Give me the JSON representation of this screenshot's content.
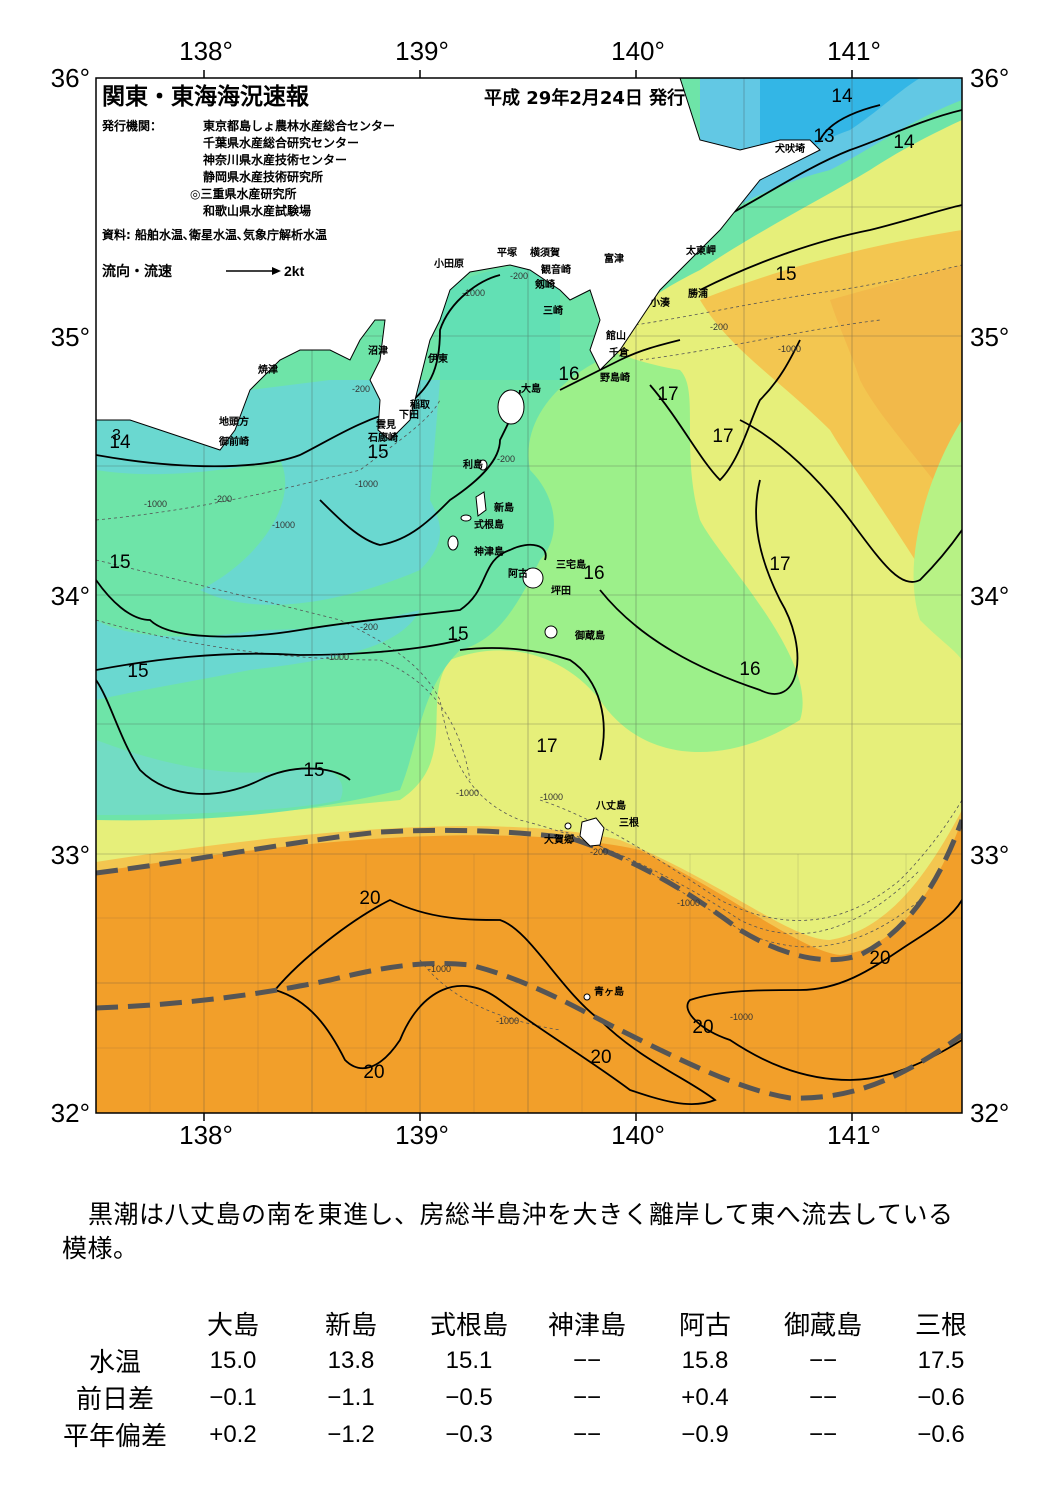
{
  "map": {
    "title": "関東・東海海況速報",
    "issue_date": "平成 29年2月24日 発行",
    "issuer_label": "発行機関：",
    "issuers": [
      "東京都島しょ農林水産総合センター",
      "千葉県水産総合研究センター",
      "神奈川県水産技術センター",
      "静岡県水産技術研究所",
      "◎三重県水産研究所",
      "和歌山県水産試験場"
    ],
    "sources": "資料: 船舶水温､衛星水温､気象庁解析水温",
    "flow_label": "流向・流速",
    "flow_scale": "2kt",
    "lon_labels": [
      "138°",
      "139°",
      "140°",
      "141°"
    ],
    "lat_labels": [
      "36°",
      "35°",
      "34°",
      "33°",
      "32°"
    ],
    "place_names": [
      "犬吠埼",
      "太東岬",
      "勝浦",
      "小湊",
      "富津",
      "館山",
      "千倉",
      "野島崎",
      "横須賀",
      "観音崎",
      "剱崎",
      "三崎",
      "平塚",
      "小田原",
      "沼津",
      "伊東",
      "焼津",
      "稲取",
      "下田",
      "雲見",
      "石廊崎",
      "地頭方",
      "御前崎",
      "大島",
      "利島",
      "新島",
      "式根島",
      "神津島",
      "三宅島",
      "阿古",
      "坪田",
      "御蔵島",
      "八丈島",
      "三根",
      "大賀郷",
      "青ヶ島"
    ],
    "isotherm_labels": [
      "14",
      "13",
      "14",
      "15",
      "16",
      "17",
      "17",
      "15",
      "14",
      "15",
      "15",
      "15",
      "16",
      "17",
      "16",
      "15",
      "17",
      "20",
      "20",
      "20",
      "20",
      "20"
    ],
    "depth_labels": [
      "-200",
      "-1000",
      "-200",
      "-1000",
      "-200",
      "-1000",
      "-200",
      "-1000",
      "-200",
      "-1000",
      "-1000",
      "-1000",
      "-1000",
      "-1000",
      "-1000",
      "-200",
      "-1000",
      "-200",
      "-1000"
    ],
    "colors": {
      "sea_13": "#33b6e6",
      "sea_14": "#5fd0dc",
      "sea_15": "#62e0b4",
      "sea_15b": "#7cec9c",
      "sea_16": "#9cf08a",
      "sea_17": "#e6ef7a",
      "sea_18": "#f3dc62",
      "sea_19": "#f2b94a",
      "sea_20": "#f29f2a",
      "land": "#ffffff",
      "kuroshio": "#555555"
    }
  },
  "summary": {
    "text_line1": "黒潮は八丈島の南を東進し、房総半島沖を大きく離岸して東へ流去している",
    "text_line2": "模様。"
  },
  "table": {
    "stations": [
      "大島",
      "新島",
      "式根島",
      "神津島",
      "阿古",
      "御蔵島",
      "三根"
    ],
    "rows": [
      {
        "label": "水温",
        "values": [
          "15.0",
          "13.8",
          "15.1",
          "−−",
          "15.8",
          "−−",
          "17.5"
        ]
      },
      {
        "label": "前日差",
        "values": [
          "−0.1",
          "−1.1",
          "−0.5",
          "−−",
          "+0.4",
          "−−",
          "−0.6"
        ]
      },
      {
        "label": "平年偏差",
        "values": [
          "+0.2",
          "−1.2",
          "−0.3",
          "−−",
          "−0.9",
          "−−",
          "−0.6"
        ]
      }
    ]
  }
}
